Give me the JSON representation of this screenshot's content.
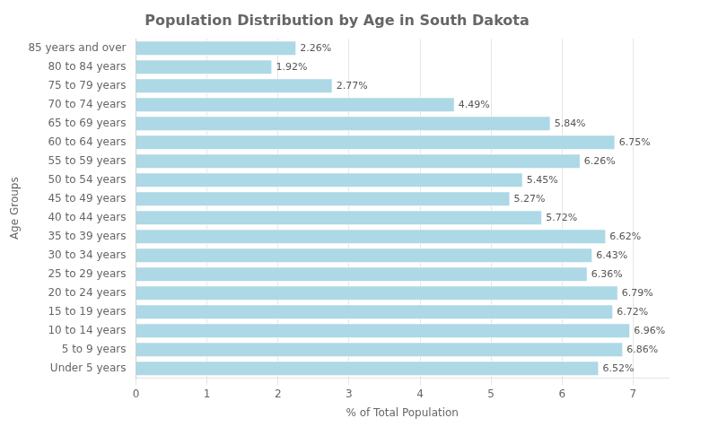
{
  "chart_data": {
    "type": "bar",
    "orientation": "horizontal",
    "title": "Population Distribution by Age in South Dakota",
    "xlabel": "% of Total Population",
    "ylabel": "Age Groups",
    "categories": [
      "85 years and over",
      "80 to 84 years",
      "75 to 79 years",
      "70 to 74 years",
      "65 to 69 years",
      "60 to 64 years",
      "55 to 59 years",
      "50 to 54 years",
      "45 to 49 years",
      "40 to 44 years",
      "35 to 39 years",
      "30 to 34 years",
      "25 to 29 years",
      "20 to 24 years",
      "15 to 19 years",
      "10 to 14 years",
      "5 to 9 years",
      "Under 5 years"
    ],
    "values": [
      2.26,
      1.92,
      2.77,
      4.49,
      5.84,
      6.75,
      6.26,
      5.45,
      5.27,
      5.72,
      6.62,
      6.43,
      6.36,
      6.79,
      6.72,
      6.96,
      6.86,
      6.52
    ],
    "value_labels": [
      "2.26%",
      "1.92%",
      "2.77%",
      "4.49%",
      "5.84%",
      "6.75%",
      "6.26%",
      "5.45%",
      "5.27%",
      "5.72%",
      "6.62%",
      "6.43%",
      "6.36%",
      "6.79%",
      "6.72%",
      "6.96%",
      "6.86%",
      "6.52%"
    ],
    "data_labels": true,
    "color": "#add8e6",
    "xlim": [
      0,
      7.5
    ],
    "xticks": [
      0,
      1,
      2,
      3,
      4,
      5,
      6,
      7
    ],
    "grid": true
  }
}
